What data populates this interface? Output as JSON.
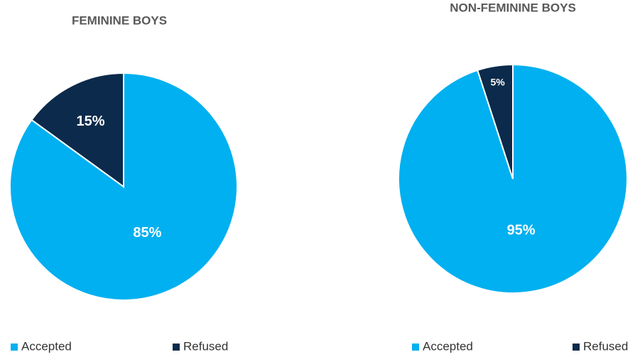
{
  "chart_data": [
    {
      "type": "pie",
      "title": "FEMININE BOYS",
      "categories": [
        "Accepted",
        "Refused"
      ],
      "values": [
        85,
        15
      ],
      "value_labels": [
        "85%",
        "15%"
      ],
      "colors": [
        "#00b0f0",
        "#0c2a4b"
      ],
      "legend": "bottom"
    },
    {
      "type": "pie",
      "title": "NON-FEMININE BOYS",
      "categories": [
        "Accepted",
        "Refused"
      ],
      "values": [
        95,
        5
      ],
      "value_labels": [
        "95%",
        "5%"
      ],
      "colors": [
        "#00b0f0",
        "#0c2a4b"
      ],
      "legend": "bottom"
    }
  ]
}
